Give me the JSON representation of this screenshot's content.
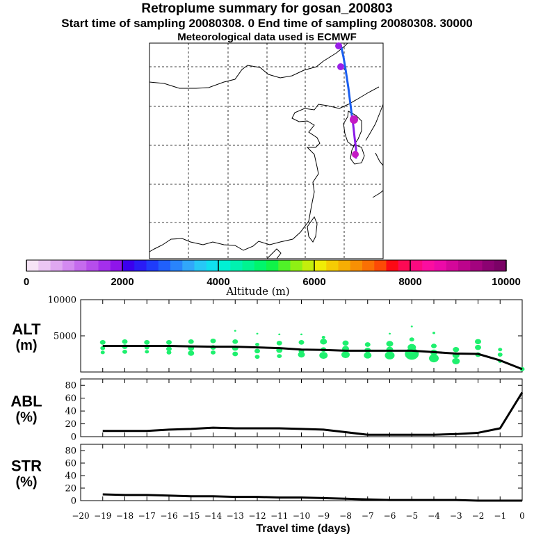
{
  "header": {
    "title": "Retroplume summary for gosan_200803",
    "sampling": "Start time of sampling 20080308.    0     End time of sampling 20080308. 30000",
    "met": "Meteorological data used is ECMWF"
  },
  "colorbar": {
    "label": "Altitude (m)",
    "tick_labels": [
      "0",
      "2000",
      "4000",
      "6000",
      "8000",
      "10000"
    ],
    "ticks": [
      0,
      2000,
      4000,
      6000,
      8000,
      10000
    ],
    "range": [
      0,
      10000
    ],
    "colors": [
      "#f6e4f6",
      "#ebc7f3",
      "#dfa8f1",
      "#d38af0",
      "#c56bee",
      "#b64dec",
      "#a42feb",
      "#8f15e9",
      "#3b00ee",
      "#2a1cf5",
      "#1f3cfa",
      "#2060fb",
      "#2984fb",
      "#31a7fa",
      "#27c8f6",
      "#10e0ef",
      "#00f0d4",
      "#00f2b0",
      "#00f490",
      "#00f56c",
      "#10f348",
      "#50f228",
      "#8ff014",
      "#c4ee0c",
      "#f0ec06",
      "#f5cc04",
      "#f6ae04",
      "#f89004",
      "#fa7004",
      "#fc4a06",
      "#fc0a14",
      "#fc0a54",
      "#fc0a80",
      "#fb0ea0",
      "#ec0aa8",
      "#d4079a",
      "#bc048c",
      "#a4037f",
      "#8c0272",
      "#7b0266"
    ]
  },
  "map": {
    "trajectory_colors": {
      "upper": "#1a5ef0",
      "lower": "#8a1ce8",
      "blob": "#9a20e8",
      "blob_deep": "#c41ac4"
    }
  },
  "chart_data": {
    "type": "line",
    "x": [
      -19,
      -18,
      -17,
      -16,
      -15,
      -14,
      -13,
      -12,
      -11,
      -10,
      -9,
      -8,
      -7,
      -6,
      -5,
      -4,
      -3,
      -2,
      -1,
      0
    ],
    "x_tick_values": [
      -20,
      -19,
      -18,
      -17,
      -16,
      -15,
      -14,
      -13,
      -12,
      -11,
      -10,
      -9,
      -8,
      -7,
      -6,
      -5,
      -4,
      -3,
      -2,
      -1,
      0
    ],
    "x_tick_labels": [
      "−20",
      "−19",
      "−18",
      "−17",
      "−16",
      "−15",
      "−14",
      "−13",
      "−12",
      "−11",
      "−10",
      "−9",
      "−8",
      "−7",
      "−6",
      "−5",
      "−4",
      "−3",
      "−2",
      "−1",
      "0"
    ],
    "xlabel": "Travel time (days)",
    "xlim": [
      -20,
      0
    ],
    "panels": [
      {
        "name": "ALT",
        "label_line1": "ALT",
        "label_line2": "(m)",
        "ylim": [
          0,
          10000
        ],
        "ytick_values": [
          5000,
          10000
        ],
        "ytick_labels": [
          "5000",
          "10000"
        ],
        "values": [
          3600,
          3600,
          3600,
          3600,
          3550,
          3500,
          3500,
          3400,
          3300,
          3100,
          3050,
          2950,
          2950,
          2950,
          2950,
          2750,
          2550,
          2500,
          1600,
          400
        ],
        "clusters": [
          {
            "x": -19,
            "y": [
              4100,
              3300,
              2700
            ],
            "w": [
              8,
              7,
              6
            ]
          },
          {
            "x": -18,
            "y": [
              4200,
              3500,
              2800
            ],
            "w": [
              8,
              8,
              7
            ]
          },
          {
            "x": -17,
            "y": [
              4100,
              3400,
              2800
            ],
            "w": [
              8,
              7,
              6
            ]
          },
          {
            "x": -16,
            "y": [
              4100,
              3200,
              2700
            ],
            "w": [
              8,
              8,
              7
            ]
          },
          {
            "x": -15,
            "y": [
              4200,
              3300,
              2600
            ],
            "w": [
              8,
              9,
              9
            ]
          },
          {
            "x": -14,
            "y": [
              4300,
              3400,
              2700
            ],
            "w": [
              8,
              8,
              7
            ]
          },
          {
            "x": -13,
            "y": [
              5700,
              4200,
              3300,
              2500
            ],
            "w": [
              3,
              8,
              9,
              8
            ]
          },
          {
            "x": -12,
            "y": [
              5300,
              3800,
              2900,
              2100
            ],
            "w": [
              3,
              6,
              8,
              7
            ]
          },
          {
            "x": -11,
            "y": [
              5200,
              4000,
              3000,
              2200
            ],
            "w": [
              3,
              8,
              9,
              7
            ]
          },
          {
            "x": -10,
            "y": [
              5200,
              4100,
              2900,
              2400
            ],
            "w": [
              3,
              8,
              8,
              10
            ]
          },
          {
            "x": -9,
            "y": [
              4800,
              4200,
              3100,
              2300
            ],
            "w": [
              5,
              10,
              8,
              12
            ]
          },
          {
            "x": -8,
            "y": [
              4000,
              3200,
              2400
            ],
            "w": [
              9,
              10,
              12
            ]
          },
          {
            "x": -7,
            "y": [
              3800,
              3000,
              2300
            ],
            "w": [
              8,
              9,
              11
            ]
          },
          {
            "x": -6,
            "y": [
              5300,
              3900,
              3100,
              2300
            ],
            "w": [
              3,
              10,
              10,
              14
            ]
          },
          {
            "x": -5,
            "y": [
              6300,
              4500,
              3400,
              2500
            ],
            "w": [
              3,
              7,
              12,
              20
            ]
          },
          {
            "x": -4,
            "y": [
              5400,
              3600,
              2700,
              1900
            ],
            "w": [
              4,
              8,
              10,
              14
            ]
          },
          {
            "x": -3,
            "y": [
              3100,
              2300,
              1500
            ],
            "w": [
              9,
              10,
              11
            ]
          },
          {
            "x": -2,
            "y": [
              4200,
              3400,
              2400
            ],
            "w": [
              9,
              9,
              8
            ]
          },
          {
            "x": -1,
            "y": [
              3100,
              2400,
              1500
            ],
            "w": [
              6,
              7,
              6
            ]
          },
          {
            "x": 0,
            "y": [
              400
            ],
            "w": [
              7
            ]
          }
        ]
      },
      {
        "name": "ABL",
        "label_line1": "ABL",
        "label_line2": "(%)",
        "ylim": [
          0,
          90
        ],
        "ytick_values": [
          0,
          20,
          40,
          60,
          80
        ],
        "ytick_labels": [
          "0",
          "20",
          "40",
          "60",
          "80"
        ],
        "values": [
          9,
          9,
          9,
          11,
          12,
          14,
          13,
          13,
          13,
          12,
          11,
          7,
          3,
          3,
          3,
          3,
          4,
          6,
          13,
          69
        ]
      },
      {
        "name": "STR",
        "label_line1": "STR",
        "label_line2": "(%)",
        "ylim": [
          0,
          90
        ],
        "ytick_values": [
          0,
          20,
          40,
          60,
          80
        ],
        "ytick_labels": [
          "0",
          "20",
          "40",
          "60",
          "80"
        ],
        "values": [
          10,
          9,
          9,
          8,
          7,
          7,
          6,
          6,
          5,
          5,
          4,
          3,
          2,
          1,
          1,
          1,
          1,
          0,
          0,
          0
        ]
      }
    ]
  }
}
